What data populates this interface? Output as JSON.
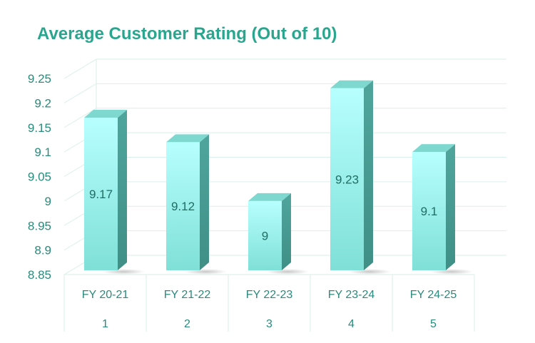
{
  "chart_data": {
    "type": "bar",
    "title": "Average Customer Rating (Out of 10)",
    "categories": [
      "FY 20-21",
      "FY 21-22",
      "FY 22-23",
      "FY 23-24",
      "FY 24-25"
    ],
    "category_index_labels": [
      "1",
      "2",
      "3",
      "4",
      "5"
    ],
    "values": [
      9.17,
      9.12,
      9,
      9.23,
      9.1
    ],
    "data_labels": [
      "9.17",
      "9.12",
      "9",
      "9.23",
      "9.1"
    ],
    "y_ticks": [
      "8.85",
      "8.9",
      "8.95",
      "9",
      "9.05",
      "9.1",
      "9.15",
      "9.2",
      "9.25"
    ],
    "ylim": [
      8.85,
      9.25
    ],
    "xlabel": "",
    "ylabel": "",
    "grid": true,
    "legend": "none",
    "style": "3d-column",
    "colors": {
      "title": "#2aa58e",
      "ticks": "#2a8a7c",
      "data_label": "#1f6e64",
      "bar_front_top": "#b7ffff",
      "bar_front_bottom": "#7fe0d7",
      "bar_side": "#4fa59c",
      "bar_top": "#7fd8cf",
      "grid": "#d9efe9"
    }
  }
}
